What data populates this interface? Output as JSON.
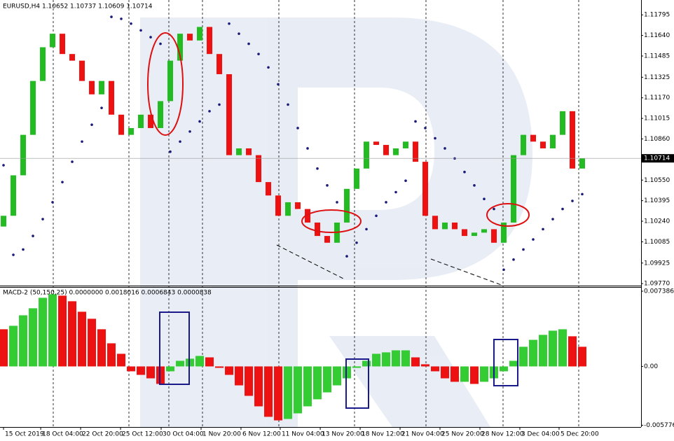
{
  "chart_data": [
    {
      "type": "candlestick",
      "title": "EURUSD,H4 1.10652 1.10737 1.10609 1.10714",
      "open": [
        1.102,
        1.10281,
        1.10586,
        1.10891,
        1.11297,
        1.11551,
        1.11653,
        1.115,
        1.1145,
        1.11297,
        1.11196,
        1.11297,
        1.11043,
        1.10891,
        1.10942,
        1.11043,
        1.10942,
        1.11145,
        1.1145,
        1.11653,
        1.11602,
        1.11704,
        1.115,
        1.11348,
        1.10738,
        1.10789,
        1.10738,
        1.10535,
        1.10434,
        1.10281,
        1.10383,
        1.10332,
        1.1023,
        1.10129,
        1.10078,
        1.1023,
        1.10484,
        1.10637,
        1.1084,
        1.10815,
        1.10738,
        1.10789,
        1.1084,
        1.10688,
        1.10281,
        1.1018,
        1.1023,
        1.1018,
        1.10129,
        1.10154,
        1.1018,
        1.10078,
        1.1023,
        1.10738,
        1.10891,
        1.1084,
        1.10789,
        1.10891,
        1.11069,
        1.10637
      ],
      "close": [
        1.10281,
        1.10586,
        1.10891,
        1.11297,
        1.11551,
        1.11653,
        1.115,
        1.1145,
        1.11297,
        1.11196,
        1.11297,
        1.11043,
        1.10891,
        1.10942,
        1.11043,
        1.10942,
        1.11145,
        1.1145,
        1.11653,
        1.11602,
        1.11704,
        1.115,
        1.11348,
        1.10738,
        1.10789,
        1.10738,
        1.10535,
        1.10434,
        1.10281,
        1.10383,
        1.10332,
        1.1023,
        1.10129,
        1.10078,
        1.1023,
        1.10484,
        1.10637,
        1.1084,
        1.10815,
        1.10738,
        1.10789,
        1.1084,
        1.10688,
        1.10281,
        1.1018,
        1.1023,
        1.1018,
        1.10129,
        1.10154,
        1.1018,
        1.10078,
        1.1023,
        1.10738,
        1.10891,
        1.1084,
        1.10789,
        1.10891,
        1.11069,
        1.10637,
        1.10714
      ],
      "sar": [
        1.10662,
        1.09987,
        1.10027,
        1.10129,
        1.10256,
        1.10383,
        1.10535,
        1.10688,
        1.1084,
        1.10967,
        1.11094,
        1.1178,
        1.11765,
        1.11729,
        1.11678,
        1.11627,
        1.11577,
        1.10764,
        1.1084,
        1.10916,
        1.10992,
        1.11069,
        1.11119,
        1.11729,
        1.11653,
        1.11577,
        1.115,
        1.11399,
        1.11272,
        1.11119,
        1.10942,
        1.10789,
        1.10637,
        1.1051,
        1.10383,
        1.09976,
        1.10078,
        1.1018,
        1.10281,
        1.10383,
        1.10459,
        1.10545,
        1.10992,
        1.10942,
        1.10865,
        1.10789,
        1.10713,
        1.10611,
        1.1051,
        1.10408,
        1.10332,
        1.09875,
        1.09951,
        1.10027,
        1.10103,
        1.1018,
        1.10256,
        1.10332,
        1.10393,
        1.10444
      ],
      "up_color": "#22bb22",
      "down_color": "#ee1111",
      "sar_color": "#1a1a7a",
      "current_price": 1.10714,
      "xlim": [
        -0.36,
        65
      ],
      "ylim": [
        1.09755,
        1.11907
      ],
      "yticks": [
        1.11795,
        {
          "value": 1.1164,
          "label": "1.11640"
        },
        1.11485,
        1.11325,
        {
          "value": 1.1117,
          "label": "1.11170"
        },
        1.11015,
        {
          "value": 1.1086,
          "label": "1.10860"
        },
        {
          "value": 1.1055,
          "label": "1.10550"
        },
        1.10395,
        {
          "value": 1.1024,
          "label": "1.10240"
        },
        1.10085,
        1.09925,
        {
          "value": 1.0977,
          "label": "1.09770"
        }
      ]
    },
    {
      "type": "bar",
      "title": "MACD-2 (50,150,25) 0.0000000 0.0018016 0.0006843 0.0000838",
      "values": [
        0.00365,
        0.00399,
        0.00502,
        0.00571,
        0.00674,
        0.00709,
        0.00695,
        0.0064,
        0.00537,
        0.00468,
        0.00365,
        0.00227,
        0.00124,
        -0.00048,
        -0.00083,
        -0.00117,
        -0.00172,
        -0.00048,
        0.00055,
        0.00076,
        0.00103,
        0.00089,
        -0.00014,
        -0.00083,
        -0.00186,
        -0.00289,
        -0.00392,
        -0.00495,
        -0.0053,
        -0.00516,
        -0.00461,
        -0.00392,
        -0.00323,
        -0.00255,
        -0.00186,
        -0.00117,
        -0.00014,
        0.00055,
        0.00124,
        0.00138,
        0.00158,
        0.00158,
        0.00089,
        0.00021,
        -0.00048,
        -0.00117,
        -0.00151,
        -0.00151,
        -0.00172,
        -0.00151,
        -0.00117,
        -0.00048,
        0.00055,
        0.00193,
        0.00261,
        0.0031,
        0.00351,
        0.00365,
        0.00296,
        0.00193
      ],
      "up_color": "#33cc33",
      "down_color": "#ee1111",
      "xlim": [
        -0.36,
        65
      ],
      "ylim": [
        -0.00595,
        0.0078
      ],
      "yticks": [
        0.0073868,
        {
          "value": 0,
          "label": "0.00"
        },
        -0.005776
      ],
      "xticks": [
        {
          "value": 0,
          "label": "15 Oct 2019"
        },
        {
          "value": 3.79,
          "label": "18 Oct 04:00"
        },
        {
          "value": 7.86,
          "label": "22 Oct 20:00"
        },
        {
          "value": 11.93,
          "label": "25 Oct 12:00"
        },
        {
          "value": 16.07,
          "label": "30 Oct 04:00"
        },
        {
          "value": 20.14,
          "label": "1 Nov 20:00"
        },
        {
          "value": 24.21,
          "label": "6 Nov 12:00"
        },
        {
          "value": 28.21,
          "label": "11 Nov 04:00"
        },
        {
          "value": 32.29,
          "label": "13 Nov 20:00"
        },
        {
          "value": 36.36,
          "label": "18 Nov 12:00"
        },
        {
          "value": 40.43,
          "label": "21 Nov 04:00"
        },
        {
          "value": 44.5,
          "label": "25 Nov 20:00"
        },
        {
          "value": 48.57,
          "label": "28 Nov 12:00"
        },
        {
          "value": 52.64,
          "label": "3 Dec 04:00"
        },
        {
          "value": 56.64,
          "label": "5 Dec 20:00"
        }
      ]
    }
  ]
}
